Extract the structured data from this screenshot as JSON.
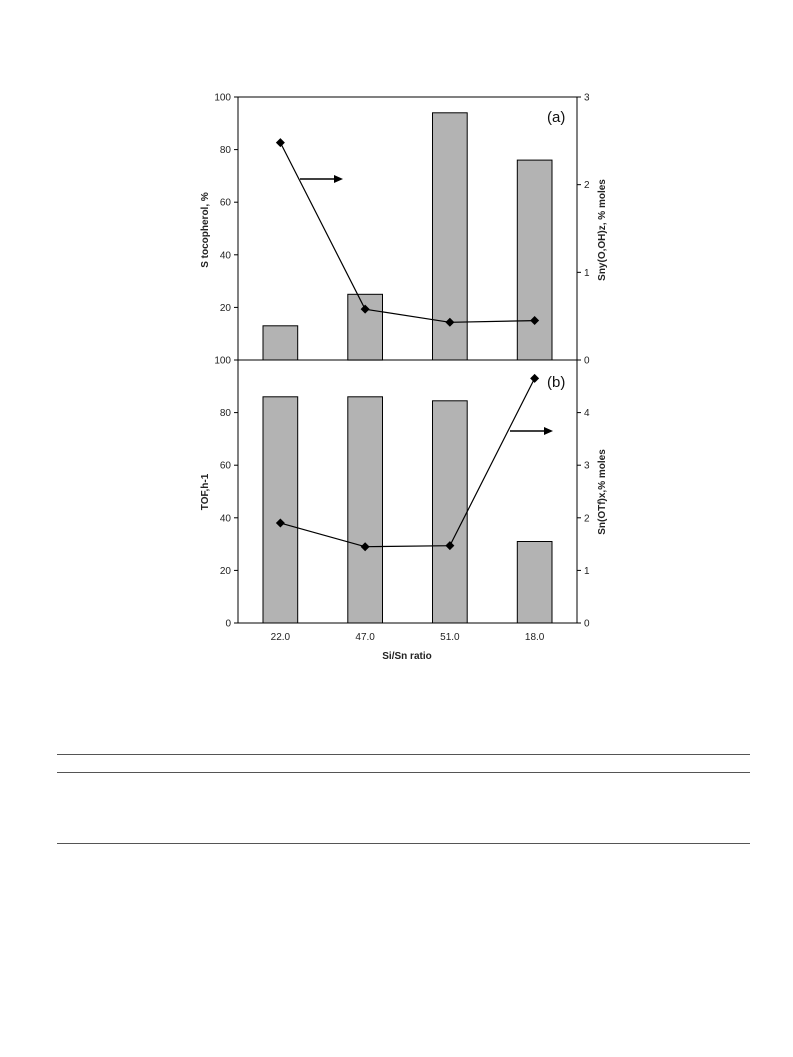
{
  "chart_data": [
    {
      "type": "bar",
      "panel_label": "(a)",
      "categories": [
        "22.0",
        "47.0",
        "51.0",
        "18.0"
      ],
      "ylabel": "S tocopherol, %",
      "y2label": "Sny(O,OH)z, % moles",
      "ylim": [
        0,
        100
      ],
      "y2lim": [
        0,
        3
      ],
      "yticks": [
        "100",
        "80",
        "60",
        "40",
        "20"
      ],
      "y2ticks": [
        "3",
        "2",
        "1",
        "0"
      ],
      "series": [
        {
          "type": "bar",
          "axis": "left",
          "values": [
            13,
            25,
            94,
            76
          ]
        },
        {
          "type": "line",
          "axis": "right",
          "values": [
            2.48,
            0.58,
            0.43,
            0.45
          ]
        }
      ],
      "arrow": "right",
      "grid": false
    },
    {
      "type": "bar",
      "panel_label": "(b)",
      "categories": [
        "22.0",
        "47.0",
        "51.0",
        "18.0"
      ],
      "xlabel": "Si/Sn ratio",
      "ylabel": "TOF,h-1",
      "y2label": "Sn(OTf)x,% moles",
      "ylim": [
        0,
        100
      ],
      "y2lim": [
        0,
        5
      ],
      "yticks": [
        "100",
        "80",
        "60",
        "40",
        "20",
        "0"
      ],
      "y2ticks": [
        "4",
        "3",
        "2",
        "1",
        "0"
      ],
      "series": [
        {
          "type": "bar",
          "axis": "left",
          "values": [
            86,
            86,
            84.5,
            31
          ]
        },
        {
          "type": "line",
          "axis": "right",
          "values": [
            1.9,
            1.45,
            1.47,
            4.65
          ]
        }
      ],
      "arrow": "right",
      "grid": false
    }
  ],
  "colors": {
    "bar_fill": "#b3b3b3",
    "stroke": "#000000",
    "rule": "#555555"
  }
}
